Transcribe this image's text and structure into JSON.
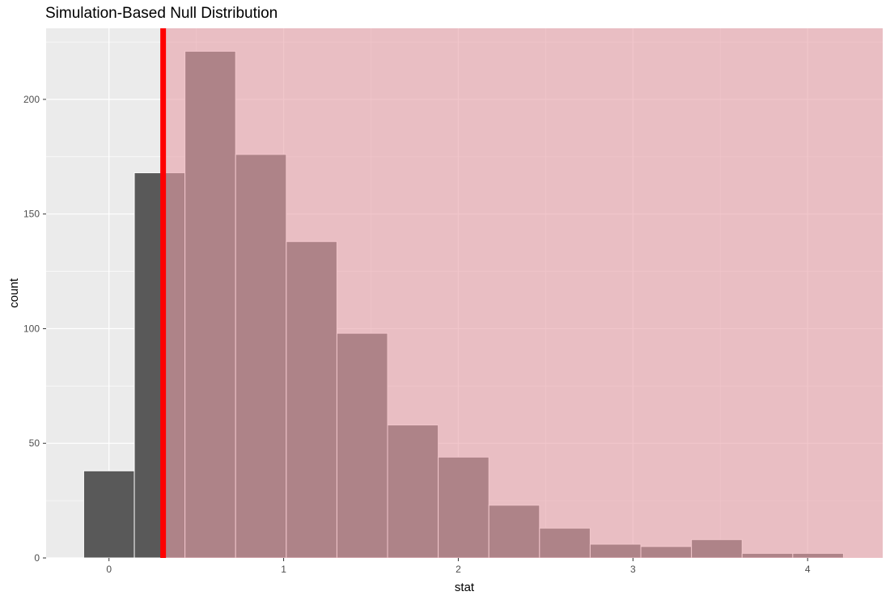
{
  "chart_data": {
    "type": "bar",
    "title": "Simulation-Based Null Distribution",
    "xlabel": "stat",
    "ylabel": "count",
    "xlim": [
      -0.36,
      4.43
    ],
    "ylim": [
      0,
      231
    ],
    "x_ticks": [
      0,
      1,
      2,
      3,
      4
    ],
    "y_ticks": [
      0,
      50,
      100,
      150,
      200
    ],
    "bin_width": 0.29,
    "bins": [
      {
        "xmin": -0.145,
        "xmax": 0.145,
        "count": 38
      },
      {
        "xmin": 0.145,
        "xmax": 0.435,
        "count": 168
      },
      {
        "xmin": 0.435,
        "xmax": 0.725,
        "count": 221
      },
      {
        "xmin": 0.725,
        "xmax": 1.015,
        "count": 176
      },
      {
        "xmin": 1.015,
        "xmax": 1.305,
        "count": 138
      },
      {
        "xmin": 1.305,
        "xmax": 1.595,
        "count": 98
      },
      {
        "xmin": 1.595,
        "xmax": 1.885,
        "count": 58
      },
      {
        "xmin": 1.885,
        "xmax": 2.175,
        "count": 44
      },
      {
        "xmin": 2.175,
        "xmax": 2.465,
        "count": 23
      },
      {
        "xmin": 2.465,
        "xmax": 2.755,
        "count": 13
      },
      {
        "xmin": 2.755,
        "xmax": 3.045,
        "count": 6
      },
      {
        "xmin": 3.045,
        "xmax": 3.335,
        "count": 5
      },
      {
        "xmin": 3.335,
        "xmax": 3.625,
        "count": 8
      },
      {
        "xmin": 3.625,
        "xmax": 3.915,
        "count": 2
      },
      {
        "xmin": 3.915,
        "xmax": 4.205,
        "count": 2
      }
    ],
    "observed_stat": 0.31,
    "shade_direction": "right",
    "grid": true,
    "colors": {
      "panel_background": "#EBEBEB",
      "grid_major": "#FFFFFF",
      "grid_minor": "#F5F5F5",
      "bar_fill": "#595959",
      "bar_outline": "#FFFFFF",
      "shade_fill": "#E8A0A8",
      "shade_opacity": 0.6,
      "observed_line": "#FF0000",
      "tick_text": "#4D4D4D",
      "axis_title": "#000000"
    }
  }
}
